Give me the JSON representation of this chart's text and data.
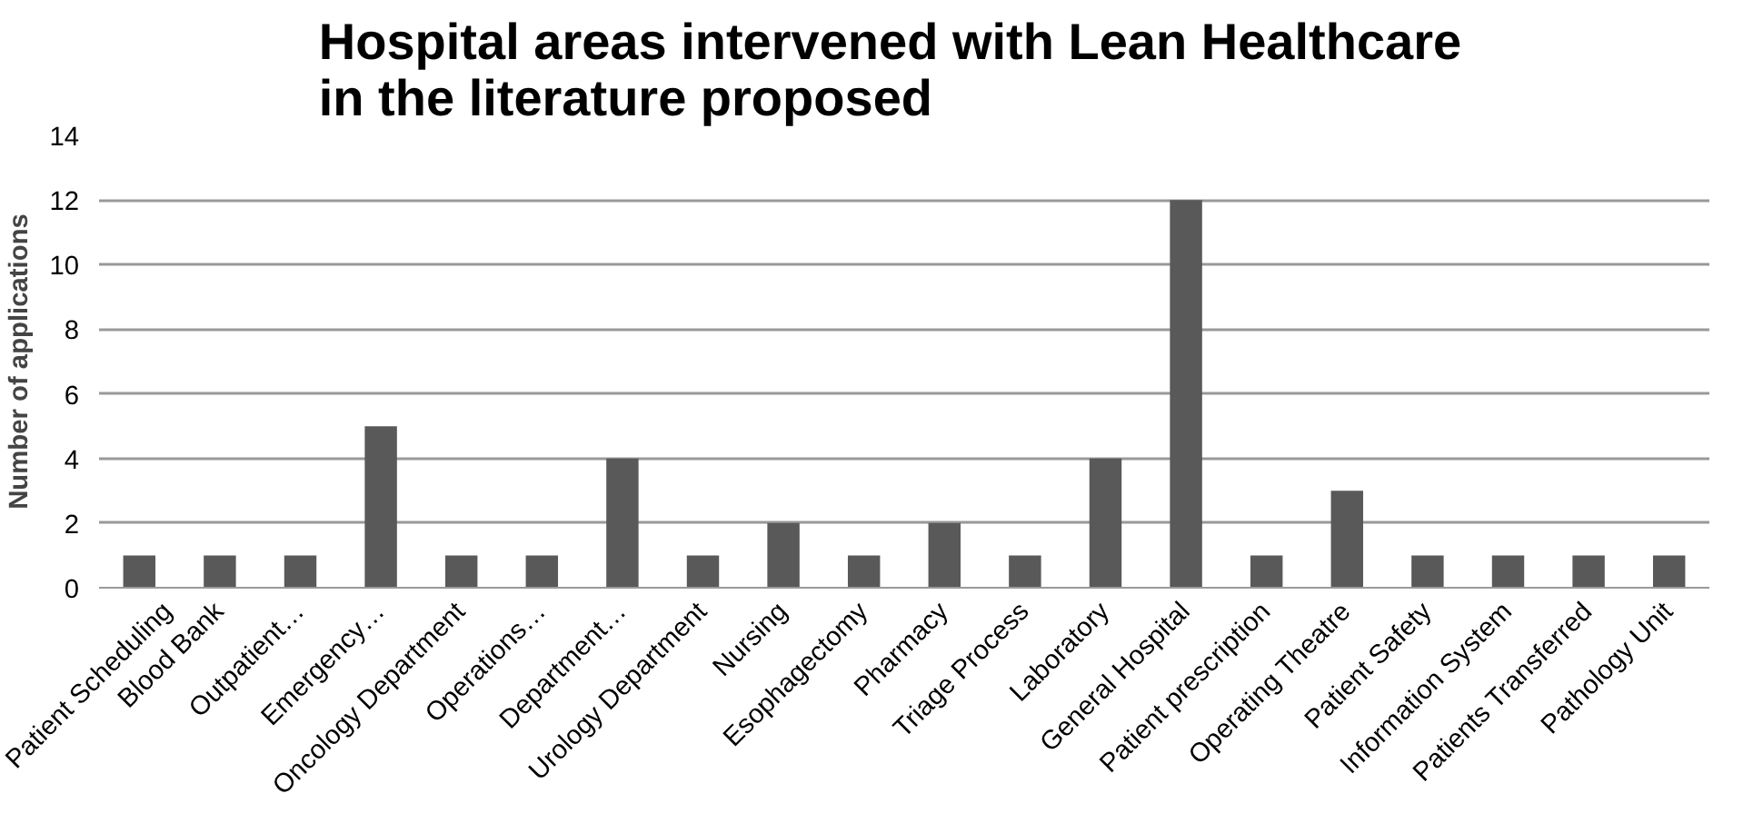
{
  "chart_data": {
    "type": "bar",
    "title": "Hospital  areas intervened  with Lean Healthcare\nin the literature proposed",
    "ylabel": "Number of applications",
    "categories": [
      "Patient Scheduling",
      "Blood Bank",
      "Outpatient…",
      "Emergency…",
      "Oncology Department",
      "Operations…",
      "Department…",
      "Urology Department",
      "Nursing",
      "Esophagectomy",
      "Pharmacy",
      "Triage Process",
      "Laboratory",
      "General Hospital",
      "Patient prescription",
      "Operating Theatre",
      "Patient Safety",
      "Information System",
      "Patients Transferred",
      "Pathology Unit"
    ],
    "values": [
      1,
      1,
      1,
      5,
      1,
      1,
      4,
      1,
      2,
      1,
      2,
      1,
      4,
      12,
      1,
      3,
      1,
      1,
      1,
      1
    ],
    "color": "#595959",
    "ylim": [
      0,
      14
    ],
    "yticks": [
      0,
      2,
      4,
      6,
      8,
      10,
      12,
      14
    ],
    "grid": "y"
  }
}
